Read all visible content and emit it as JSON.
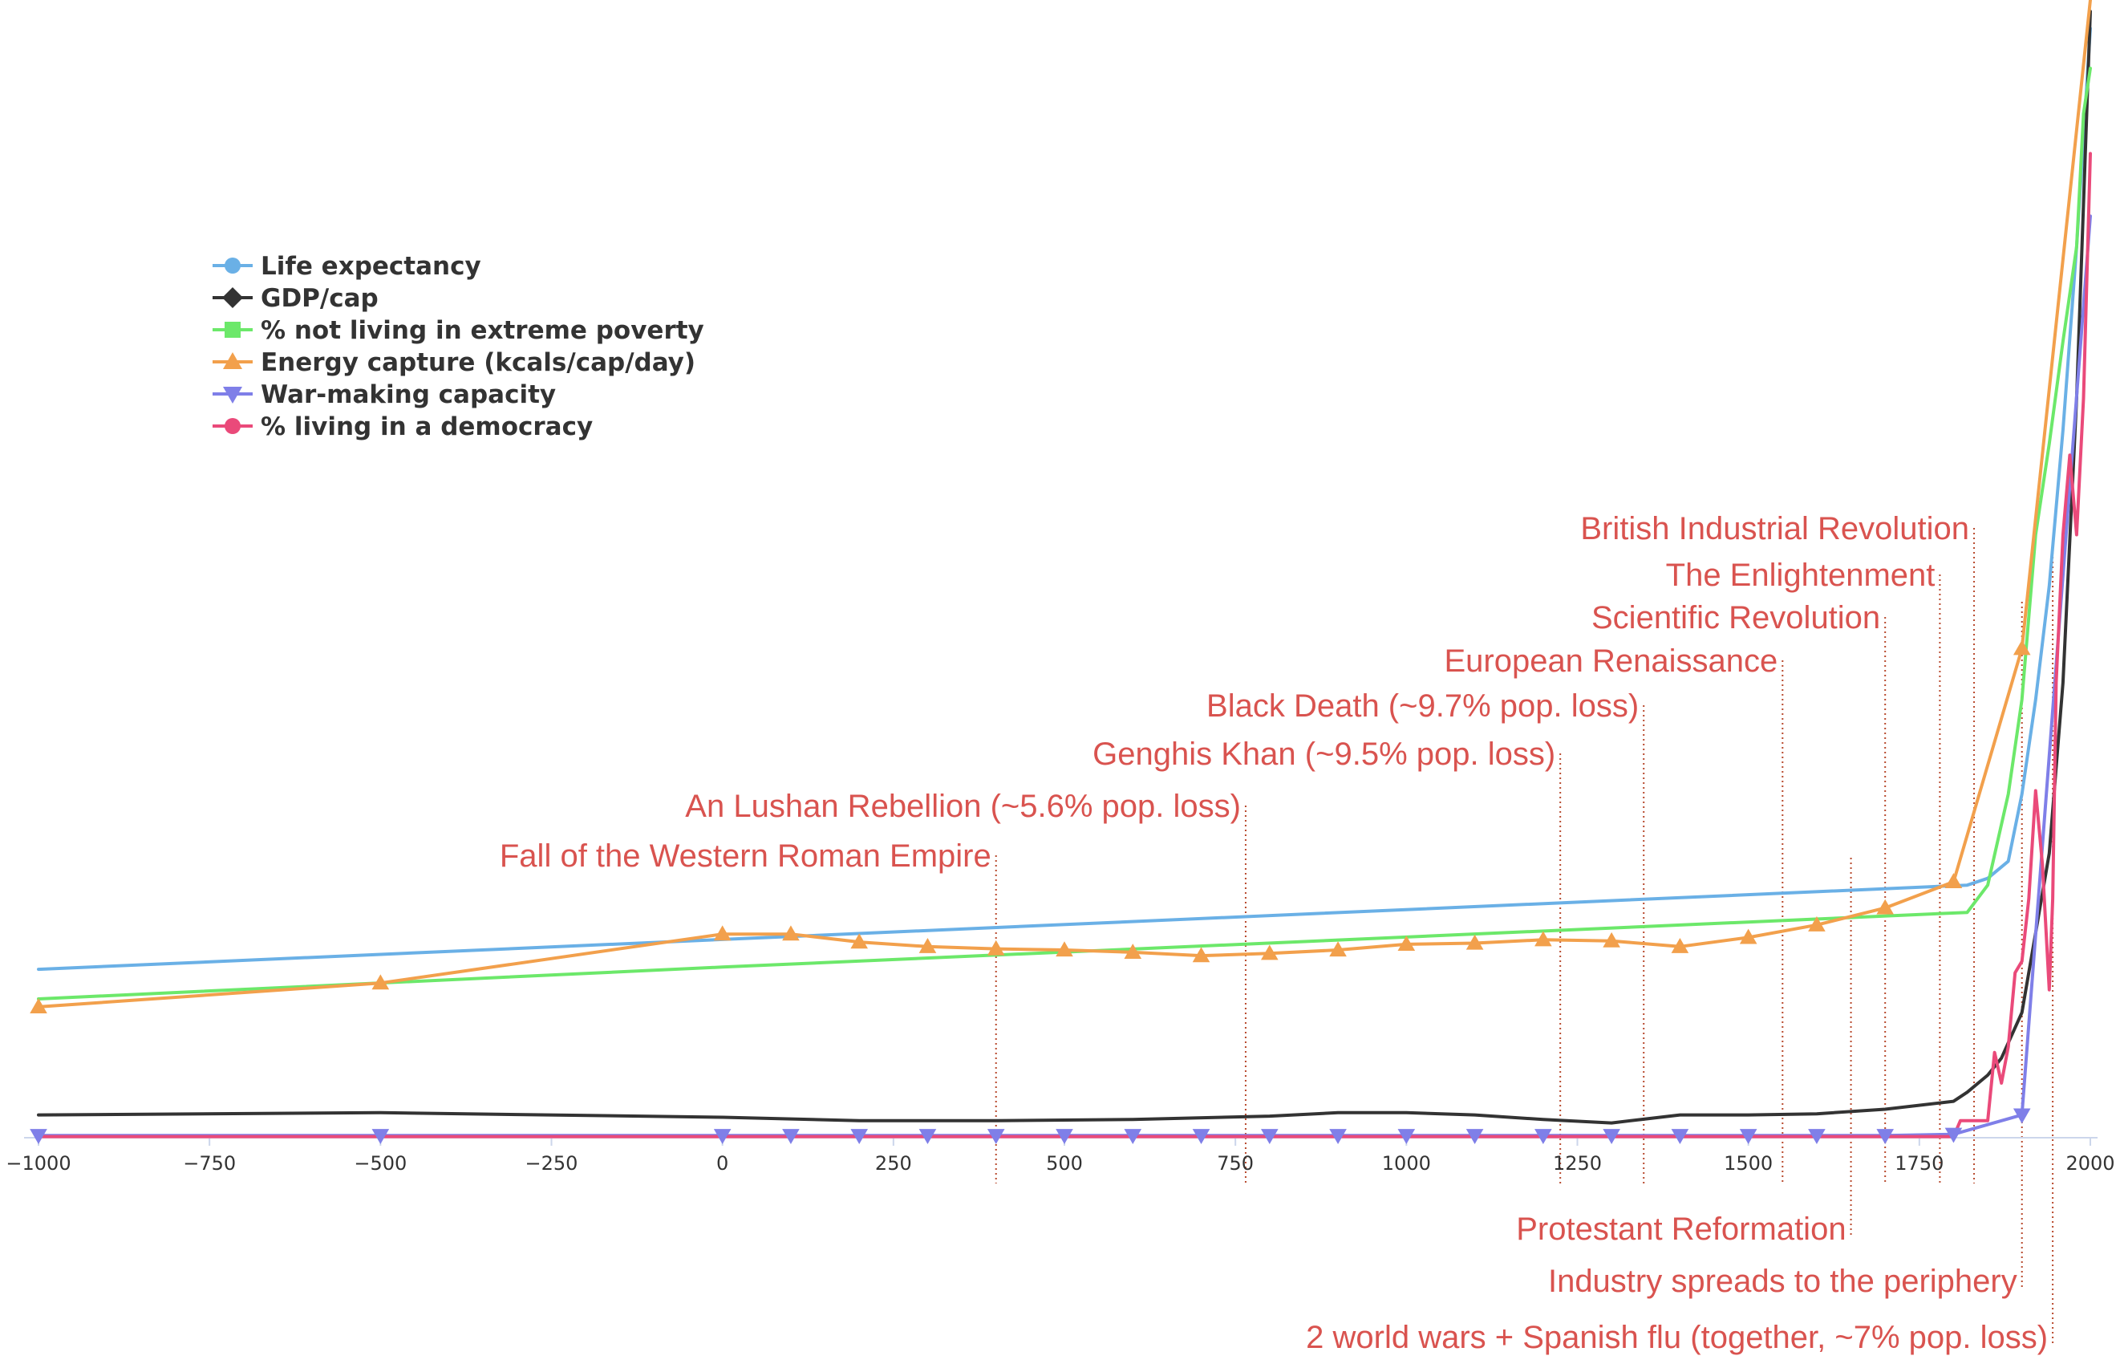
{
  "chart_data": {
    "type": "line",
    "title": "",
    "xlabel": "",
    "ylabel": "",
    "xlim": [
      -1000,
      2000
    ],
    "ylim": [
      0,
      100
    ],
    "x_ticks": [
      {
        "value": -1000,
        "label": "−1000"
      },
      {
        "value": -750,
        "label": "−750"
      },
      {
        "value": -500,
        "label": "−500"
      },
      {
        "value": -250,
        "label": "−250"
      },
      {
        "value": 0,
        "label": "0"
      },
      {
        "value": 250,
        "label": "250"
      },
      {
        "value": 500,
        "label": "500"
      },
      {
        "value": 750,
        "label": "750"
      },
      {
        "value": 1000,
        "label": "1000"
      },
      {
        "value": 1250,
        "label": "1250"
      },
      {
        "value": 1500,
        "label": "1500"
      },
      {
        "value": 1750,
        "label": "1750"
      },
      {
        "value": 2000,
        "label": "2000"
      }
    ],
    "grid": false,
    "legend_position": "top-left",
    "series": [
      {
        "name": "Life expectancy",
        "color": "#6ab0e6",
        "marker": "circle",
        "x": [
          -1000,
          1820,
          1850,
          1880,
          1900,
          1920,
          1940,
          1960,
          1980,
          2000
        ],
        "y": [
          14.8,
          22.2,
          22.8,
          24.3,
          30.2,
          38.5,
          48.5,
          62.2,
          78.3,
          97.5
        ]
      },
      {
        "name": "GDP/cap",
        "color": "#333333",
        "marker": "diamond",
        "x": [
          -1000,
          -500,
          0,
          200,
          400,
          600,
          800,
          900,
          1000,
          1100,
          1200,
          1300,
          1400,
          1500,
          1600,
          1700,
          1800,
          1820,
          1850,
          1870,
          1900,
          1920,
          1940,
          1960,
          1980,
          2000
        ],
        "y": [
          2.0,
          2.2,
          1.8,
          1.5,
          1.5,
          1.6,
          1.9,
          2.2,
          2.2,
          2.0,
          1.6,
          1.3,
          2.0,
          2.0,
          2.1,
          2.5,
          3.2,
          4.0,
          5.5,
          7.0,
          11.0,
          18.0,
          25.0,
          40.0,
          65.0,
          99.0
        ]
      },
      {
        "name": "% not living in extreme poverty",
        "color": "#6ce86a",
        "marker": "square",
        "x": [
          -1000,
          0,
          1820,
          1850,
          1880,
          1900,
          1920,
          1940,
          1960,
          1980,
          1990,
          2000
        ],
        "y": [
          12.2,
          15.0,
          19.8,
          22.2,
          30.2,
          38.5,
          53.0,
          61.0,
          70.0,
          78.3,
          90.0,
          94.0
        ]
      },
      {
        "name": "Energy capture (kcals/cap/day)",
        "color": "#f2a04c",
        "marker": "triangle-up",
        "x": [
          -1000,
          -500,
          0,
          100,
          200,
          300,
          400,
          500,
          600,
          700,
          800,
          900,
          1000,
          1100,
          1200,
          1300,
          1400,
          1500,
          1600,
          1700,
          1800,
          1900,
          2000
        ],
        "y": [
          11.5,
          13.6,
          17.9,
          17.9,
          17.2,
          16.8,
          16.6,
          16.5,
          16.3,
          16.0,
          16.2,
          16.5,
          17.0,
          17.1,
          17.4,
          17.3,
          16.8,
          17.6,
          18.7,
          20.2,
          22.5,
          43.0,
          100.0
        ]
      },
      {
        "name": "War-making capacity",
        "color": "#7f7fe8",
        "marker": "triangle-down",
        "x": [
          -1000,
          -500,
          0,
          100,
          200,
          300,
          400,
          500,
          600,
          700,
          800,
          900,
          1000,
          1100,
          1200,
          1300,
          1400,
          1500,
          1600,
          1700,
          1800,
          1900,
          2000
        ],
        "y": [
          0.2,
          0.2,
          0.2,
          0.2,
          0.2,
          0.2,
          0.2,
          0.2,
          0.2,
          0.2,
          0.2,
          0.2,
          0.2,
          0.2,
          0.2,
          0.2,
          0.2,
          0.2,
          0.2,
          0.2,
          0.3,
          2.0,
          81.0
        ]
      },
      {
        "name": "% living in a democracy",
        "color": "#ea4a7a",
        "marker": "circle",
        "x": [
          -1000,
          1800,
          1810,
          1850,
          1860,
          1870,
          1880,
          1890,
          1900,
          1910,
          1920,
          1930,
          1940,
          1945,
          1950,
          1960,
          1970,
          1980,
          1990,
          2000
        ],
        "y": [
          0.1,
          0.1,
          1.5,
          1.5,
          7.5,
          4.8,
          8.0,
          14.5,
          15.5,
          21.0,
          30.5,
          24.0,
          13.0,
          21.0,
          40.0,
          53.0,
          60.0,
          53.0,
          65.0,
          86.5
        ]
      }
    ],
    "annotations": [
      {
        "x": 400,
        "text": "Fall of the Western Roman Empire",
        "position": "top"
      },
      {
        "x": 765,
        "text": "An Lushan Rebellion (~5.6% pop. loss)",
        "position": "top"
      },
      {
        "x": 1225,
        "text": "Genghis Khan (~9.5% pop. loss)",
        "position": "top"
      },
      {
        "x": 1347,
        "text": "Black Death (~9.7% pop. loss)",
        "position": "top"
      },
      {
        "x": 1550,
        "text": "European Renaissance",
        "position": "top"
      },
      {
        "x": 1700,
        "text": "Scientific Revolution",
        "position": "top"
      },
      {
        "x": 1780,
        "text": "The Enlightenment",
        "position": "top"
      },
      {
        "x": 1830,
        "text": "British Industrial Revolution",
        "position": "top"
      },
      {
        "x": 1650,
        "text": "Protestant Reformation",
        "position": "bottom"
      },
      {
        "x": 1900,
        "text": "Industry spreads to the periphery",
        "position": "bottom"
      },
      {
        "x": 1945,
        "text": "2 world wars + Spanish flu (together, ~7%  pop. loss)",
        "position": "bottom"
      }
    ]
  }
}
